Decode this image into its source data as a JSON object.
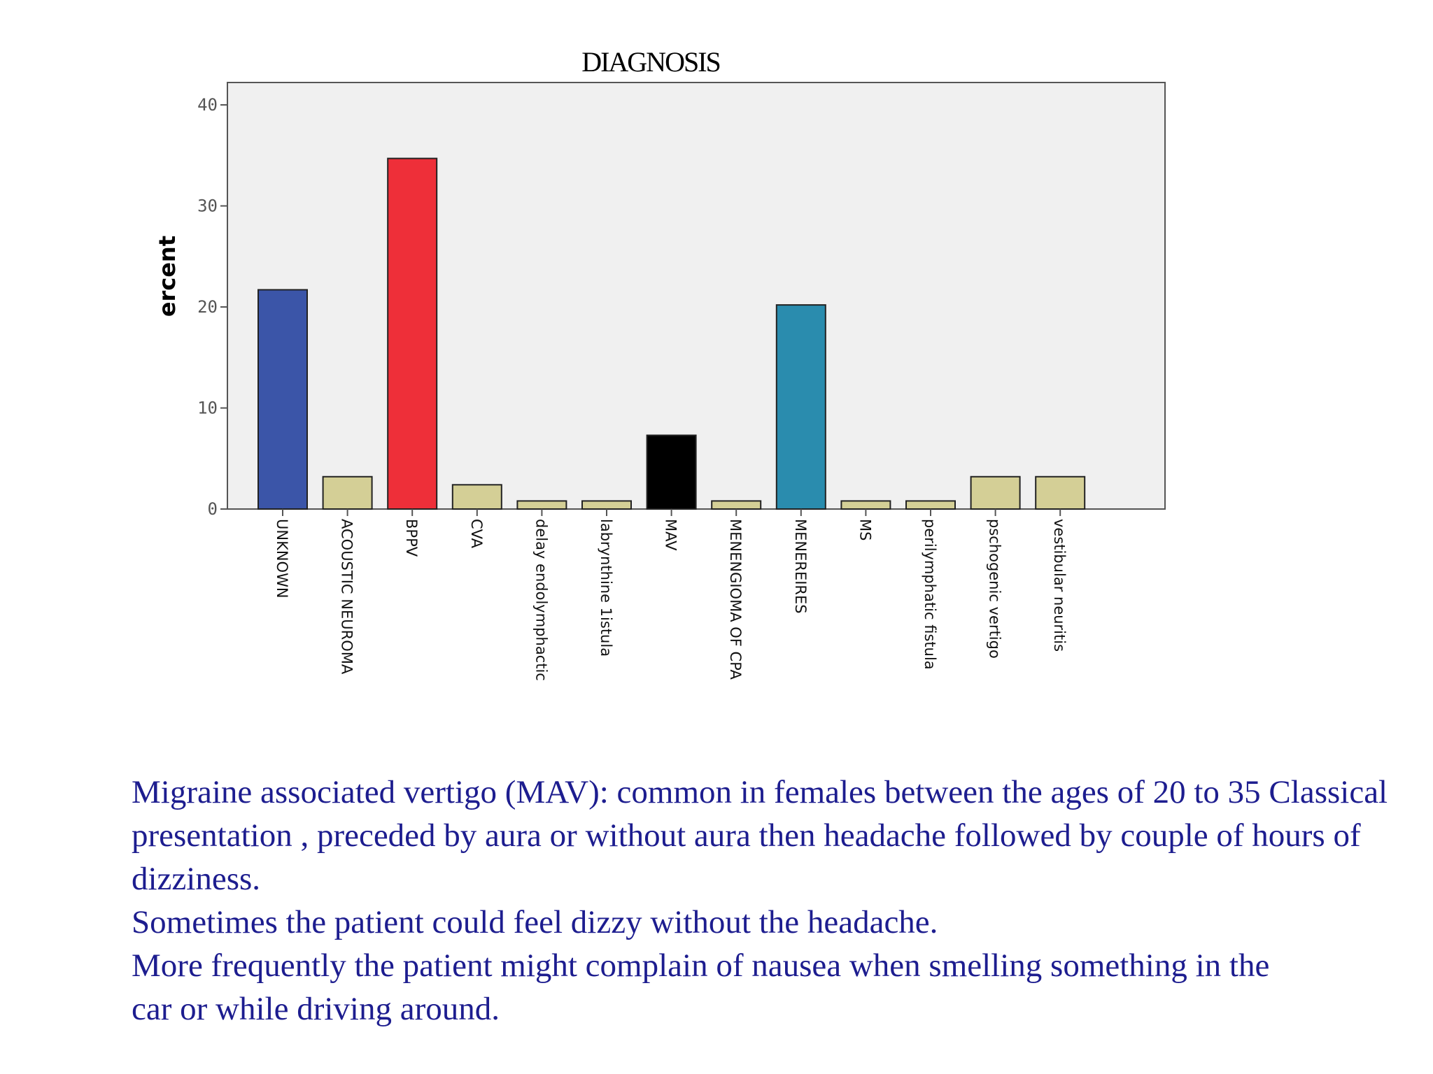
{
  "chart_data": {
    "type": "bar",
    "title": "DIAGNOSIS",
    "ylabel": "ercent",
    "xlabel": "",
    "ylim": [
      0,
      42
    ],
    "yticks": [
      0,
      10,
      20,
      30,
      40
    ],
    "grid": false,
    "categories": [
      "UNKNOWN",
      "ACOUSTIC NEUROMA",
      "BPPV",
      "CVA",
      "delay endolymphactic",
      "labrynthine 1istula",
      "MAV",
      "MENENGIOMA OF CPA",
      "MENEREIRES",
      "MS",
      "perilymphatic fistula",
      "pschogenic vertigo",
      "vestibular neuritis"
    ],
    "values": [
      21.7,
      3.2,
      34.7,
      2.4,
      0.8,
      0.8,
      7.3,
      0.8,
      20.2,
      0.8,
      0.8,
      3.2,
      3.2
    ],
    "colors": [
      "#3b55a8",
      "#d4cf96",
      "#ee2f39",
      "#d4cf96",
      "#d4cf96",
      "#d4cf96",
      "#000000",
      "#d4cf96",
      "#2a8cae",
      "#d4cf96",
      "#d4cf96",
      "#d4cf96",
      "#d4cf96"
    ]
  },
  "caption": {
    "line1": "Migraine associated vertigo (MAV): common in females between the ages of 20 to 35 Classical presentation , preceded by aura or without aura then headache followed by couple of hours of dizziness.",
    "line2": "Sometimes the patient could feel dizzy without the headache.",
    "line3": "More frequently the patient might complain of nausea when smelling something in the",
    "line4": "car or while driving around."
  }
}
